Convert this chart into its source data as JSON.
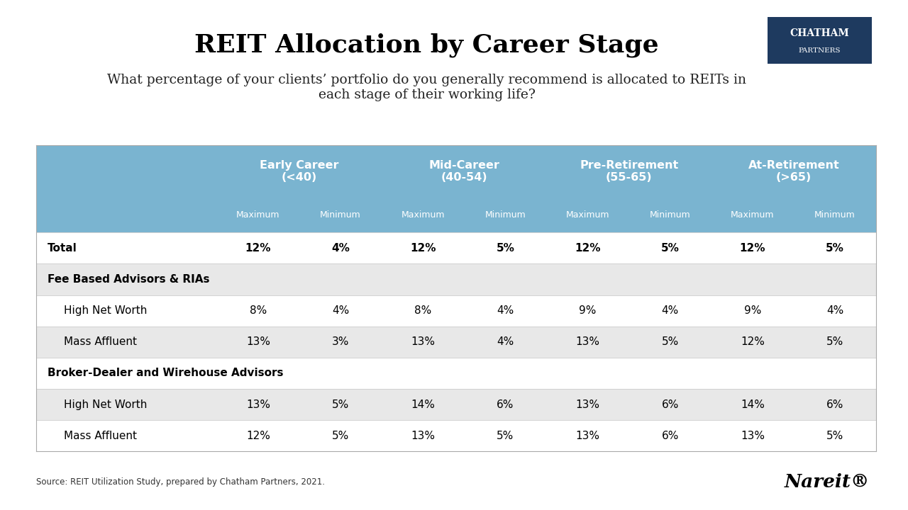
{
  "title": "REIT Allocation by Career Stage",
  "subtitle": "What percentage of your clients’ portfolio do you generally recommend is allocated to REITs in\neach stage of their working life?",
  "source": "Source: REIT Utilization Study, prepared by Chatham Partners, 2021.",
  "col_groups": [
    "Early Career\n(<40)",
    "Mid-Career\n(40-54)",
    "Pre-Retirement\n(55-65)",
    "At-Retirement\n(>65)"
  ],
  "col_headers": [
    "Maximum",
    "Minimum",
    "Maximum",
    "Minimum",
    "Maximum",
    "Minimum",
    "Maximum",
    "Minimum"
  ],
  "rows": [
    {
      "label": "Total",
      "indent": 0,
      "bold": true,
      "bg": "white",
      "values": [
        "12%",
        "4%",
        "12%",
        "5%",
        "12%",
        "5%",
        "12%",
        "5%"
      ],
      "values_bold": true
    },
    {
      "label": "Fee Based Advisors & RIAs",
      "indent": 0,
      "bold": true,
      "bg": "#e8e8e8",
      "values": [
        "",
        "",
        "",
        "",
        "",
        "",
        "",
        ""
      ],
      "values_bold": false
    },
    {
      "label": "High Net Worth",
      "indent": 1,
      "bold": false,
      "bg": "white",
      "values": [
        "8%",
        "4%",
        "8%",
        "4%",
        "9%",
        "4%",
        "9%",
        "4%"
      ],
      "values_bold": false
    },
    {
      "label": "Mass Affluent",
      "indent": 1,
      "bold": false,
      "bg": "#e8e8e8",
      "values": [
        "13%",
        "3%",
        "13%",
        "4%",
        "13%",
        "5%",
        "12%",
        "5%"
      ],
      "values_bold": false
    },
    {
      "label": "Broker-Dealer and Wirehouse Advisors",
      "indent": 0,
      "bold": true,
      "bg": "white",
      "values": [
        "",
        "",
        "",
        "",
        "",
        "",
        "",
        ""
      ],
      "values_bold": false
    },
    {
      "label": "High Net Worth",
      "indent": 1,
      "bold": false,
      "bg": "#e8e8e8",
      "values": [
        "13%",
        "5%",
        "14%",
        "6%",
        "13%",
        "6%",
        "14%",
        "6%"
      ],
      "values_bold": false
    },
    {
      "label": "Mass Affluent",
      "indent": 1,
      "bold": false,
      "bg": "white",
      "values": [
        "12%",
        "5%",
        "13%",
        "5%",
        "13%",
        "6%",
        "13%",
        "5%"
      ],
      "values_bold": false
    }
  ],
  "header_bg": "#7ab4d0",
  "header_text": "white",
  "title_color": "#000000",
  "subtitle_color": "#333333",
  "logo_bg": "#1e3a5f",
  "logo_text1": "CHATHAM",
  "logo_text2": "PARTNERS",
  "nareit_text": "Nareit®",
  "nareit_color": "#000000"
}
